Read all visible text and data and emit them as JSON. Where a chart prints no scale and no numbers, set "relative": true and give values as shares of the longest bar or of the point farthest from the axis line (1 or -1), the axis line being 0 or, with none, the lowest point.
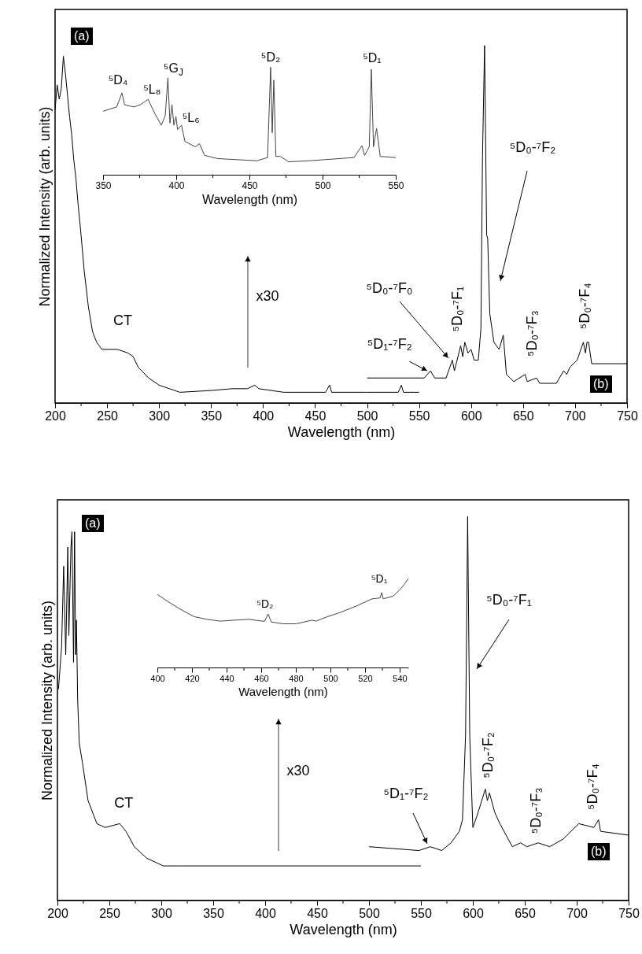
{
  "chart_data": [
    {
      "type": "line",
      "relative": true,
      "xlabel": "Wavelength (nm)",
      "ylabel": "Normalized Intensity (arb. units)",
      "xlim": [
        200,
        750
      ],
      "xticks": [
        200,
        {
          "value": 225,
          "label": null
        },
        250,
        {
          "value": 275,
          "label": null
        },
        300,
        {
          "value": 325,
          "label": null
        },
        350,
        {
          "value": 375,
          "label": null
        },
        400,
        {
          "value": 425,
          "label": null
        },
        450,
        {
          "value": 475,
          "label": null
        },
        500,
        {
          "value": 525,
          "label": null
        },
        550,
        {
          "value": 575,
          "label": null
        },
        600,
        {
          "value": 625,
          "label": null
        },
        650,
        {
          "value": 675,
          "label": null
        },
        700,
        {
          "value": 725,
          "label": null
        },
        750
      ],
      "series": [
        {
          "color": "#000000",
          "x": [
            200,
            202,
            204,
            206,
            208,
            210,
            212,
            214,
            216,
            218,
            220,
            222,
            225,
            228,
            232,
            236,
            240,
            245,
            250,
            260,
            270,
            275,
            280,
            290,
            300,
            310,
            320,
            350,
            370,
            385,
            392,
            396,
            420,
            460,
            464,
            466,
            500,
            530,
            533,
            535,
            550
          ],
          "values": [
            0.82,
            0.89,
            0.85,
            0.88,
            0.97,
            0.92,
            0.86,
            0.8,
            0.75,
            0.68,
            0.63,
            0.56,
            0.47,
            0.37,
            0.27,
            0.2,
            0.17,
            0.15,
            0.15,
            0.15,
            0.14,
            0.13,
            0.1,
            0.07,
            0.05,
            0.04,
            0.03,
            0.035,
            0.04,
            0.04,
            0.05,
            0.04,
            0.03,
            0.03,
            0.05,
            0.03,
            0.03,
            0.03,
            0.05,
            0.03,
            0.03
          ]
        },
        {
          "color": "#000000",
          "x": [
            500,
            540,
            555,
            561,
            565,
            576,
            582,
            584,
            590,
            592,
            594,
            597,
            600,
            603,
            607,
            609.5,
            611,
            613,
            615,
            616,
            618,
            622,
            627,
            631,
            634,
            641,
            652,
            654,
            663,
            666,
            682,
            689,
            692,
            695,
            702,
            708,
            710,
            711.5,
            713,
            716,
            722,
            750
          ],
          "values": [
            0.07,
            0.07,
            0.07,
            0.09,
            0.07,
            0.07,
            0.12,
            0.09,
            0.16,
            0.13,
            0.17,
            0.14,
            0.15,
            0.12,
            0.12,
            0.21,
            0.69,
            1.0,
            0.47,
            0.46,
            0.25,
            0.17,
            0.15,
            0.19,
            0.08,
            0.06,
            0.08,
            0.06,
            0.07,
            0.055,
            0.055,
            0.09,
            0.08,
            0.1,
            0.12,
            0.17,
            0.14,
            0.17,
            0.17,
            0.11,
            0.11,
            0.11
          ]
        }
      ],
      "annotations": [
        "(a)",
        "(b)",
        {
          "text": "CT",
          "x": 265,
          "y": 0.15
        },
        "x30",
        {
          "text": "⁵D₁-⁷F₂",
          "x": 558,
          "y": 0.09
        },
        "⁵D₀-⁷F₀",
        {
          "text": "⁵D₀-⁷F₁",
          "x": 589,
          "y": 0.17
        },
        "⁵D₀-⁷F₂",
        {
          "text": "⁵D₀-⁷F₃",
          "x": 652,
          "y": 0.08
        },
        {
          "text": "⁵D₀-⁷F₄",
          "x": 710,
          "y": 0.17
        }
      ]
    },
    {
      "type": "line",
      "relative": true,
      "xlabel": "Wavelength (nm)",
      "xlim": [
        350,
        550
      ],
      "xticks": [
        350,
        {
          "value": 375,
          "label": null
        },
        400,
        {
          "value": 425,
          "label": null
        },
        450,
        {
          "value": 475,
          "label": null
        },
        500,
        {
          "value": 525,
          "label": null
        },
        550
      ],
      "series": [
        {
          "color": "#444444",
          "x": [
            350,
            359.3,
            362.9,
            364.7,
            371,
            375.4,
            380.8,
            385.3,
            389.8,
            392.5,
            394.3,
            395.7,
            397.1,
            398.4,
            399.8,
            400.9,
            403.6,
            405.9,
            413.1,
            415.8,
            419.4,
            428.3,
            455.2,
            462.4,
            464.5,
            465.6,
            466.7,
            468.1,
            471.3,
            476.7,
            491,
            521.5,
            526.9,
            528.7,
            531.9,
            533.3,
            534.8,
            536.9,
            539.4,
            550
          ],
          "values": [
            0.59,
            0.63,
            0.76,
            0.65,
            0.63,
            0.65,
            0.7,
            0.57,
            0.46,
            0.55,
            0.9,
            0.48,
            0.65,
            0.46,
            0.54,
            0.42,
            0.46,
            0.31,
            0.26,
            0.29,
            0.18,
            0.15,
            0.13,
            0.16,
            1.0,
            0.39,
            0.88,
            0.17,
            0.17,
            0.12,
            0.13,
            0.16,
            0.27,
            0.18,
            0.26,
            0.98,
            0.26,
            0.43,
            0.17,
            0.16
          ]
        }
      ],
      "annotations": [
        {
          "text": "⁵D₄",
          "x": 362.9,
          "y": 0.76
        },
        {
          "text": "⁵L₈",
          "x": 380.8,
          "y": 0.7
        },
        {
          "text": "⁵G$_{J}$",
          "x": 394.3,
          "y": 0.9
        },
        {
          "text": "⁵L₆",
          "x": 403.6,
          "y": 0.46
        },
        {
          "text": "⁵D₂",
          "x": 464.5,
          "y": 1.0
        },
        {
          "text": "⁵D₁",
          "x": 533.3,
          "y": 0.98
        }
      ]
    },
    {
      "type": "line",
      "relative": true,
      "xlabel": "Wavelength (nm)",
      "ylabel": "Normalized Intensity (arb. units)",
      "xlim": [
        200,
        750
      ],
      "xticks": [
        200,
        {
          "value": 225,
          "label": null
        },
        250,
        {
          "value": 275,
          "label": null
        },
        300,
        {
          "value": 325,
          "label": null
        },
        350,
        {
          "value": 375,
          "label": null
        },
        400,
        {
          "value": 425,
          "label": null
        },
        450,
        {
          "value": 475,
          "label": null
        },
        500,
        {
          "value": 525,
          "label": null
        },
        550,
        {
          "value": 575,
          "label": null
        },
        600,
        {
          "value": 625,
          "label": null
        },
        650,
        {
          "value": 675,
          "label": null
        },
        700,
        {
          "value": 725,
          "label": null
        },
        750
      ],
      "series": [
        {
          "color": "#000000",
          "x": [
            201,
            204,
            206,
            208,
            210,
            211,
            213,
            214,
            215.5,
            216.5,
            217.5,
            218.3,
            219.5,
            221,
            224,
            229.5,
            238,
            246,
            260,
            266,
            274,
            286,
            302,
            316,
            550
          ],
          "values": [
            0.55,
            0.66,
            0.87,
            0.64,
            0.92,
            0.69,
            0.92,
            0.96,
            0.62,
            0.96,
            0.64,
            0.73,
            0.52,
            0.41,
            0.36,
            0.26,
            0.2,
            0.19,
            0.2,
            0.18,
            0.14,
            0.11,
            0.09,
            0.09,
            0.09
          ]
        },
        {
          "color": "#000000",
          "x": [
            500,
            548,
            559,
            570,
            579,
            587,
            590,
            593,
            595,
            597,
            600,
            604,
            612,
            614,
            616,
            621,
            626,
            638,
            646,
            652,
            663,
            674,
            687,
            702,
            716.5,
            721,
            723,
            750
          ],
          "values": [
            0.14,
            0.13,
            0.14,
            0.13,
            0.15,
            0.18,
            0.21,
            0.43,
            1.0,
            0.43,
            0.19,
            0.22,
            0.29,
            0.26,
            0.28,
            0.23,
            0.2,
            0.14,
            0.15,
            0.14,
            0.15,
            0.14,
            0.16,
            0.2,
            0.19,
            0.21,
            0.18,
            0.17
          ]
        }
      ],
      "annotations": [
        "(a)",
        "(b)",
        {
          "text": "CT",
          "x": 260,
          "y": 0.2
        },
        "x30",
        "⁵D₁-⁷F₂",
        "⁵D₀-⁷F₁",
        {
          "text": "⁵D₀-⁷F₂",
          "x": 612,
          "y": 0.29
        },
        {
          "text": "⁵D₀-⁷F₃",
          "x": 646,
          "y": 0.15
        },
        {
          "text": "⁵D₀-⁷F₄",
          "x": 721,
          "y": 0.21
        }
      ]
    },
    {
      "type": "line",
      "relative": true,
      "xlabel": "Wavelength (nm)",
      "xlim": [
        400,
        545
      ],
      "xticks": [
        400,
        {
          "value": 410,
          "label": null
        },
        420,
        {
          "value": 430,
          "label": null
        },
        440,
        {
          "value": 450,
          "label": null
        },
        460,
        {
          "value": 470,
          "label": null
        },
        480,
        {
          "value": 490,
          "label": null
        },
        500,
        {
          "value": 510,
          "label": null
        },
        520,
        {
          "value": 530,
          "label": null
        },
        540
      ],
      "series": [
        {
          "color": "#444444",
          "x": [
            400,
            406,
            413.6,
            421.2,
            428.8,
            436.3,
            443.9,
            453,
            460.5,
            462,
            464,
            465.8,
            472.6,
            480.2,
            489.3,
            491.6,
            496.9,
            506,
            515,
            524.1,
            528.7,
            529.6,
            530.5,
            536.2,
            540,
            543,
            545
          ],
          "values": [
            0.82,
            0.74,
            0.65,
            0.57,
            0.54,
            0.52,
            0.53,
            0.54,
            0.52,
            0.52,
            0.6,
            0.51,
            0.49,
            0.49,
            0.53,
            0.52,
            0.56,
            0.62,
            0.69,
            0.77,
            0.78,
            0.84,
            0.77,
            0.8,
            0.87,
            0.94,
            1.0
          ]
        }
      ],
      "annotations": [
        {
          "text": "⁵D₂",
          "x": 464,
          "y": 0.6
        },
        {
          "text": "⁵D₁",
          "x": 529.6,
          "y": 0.84
        }
      ]
    }
  ]
}
